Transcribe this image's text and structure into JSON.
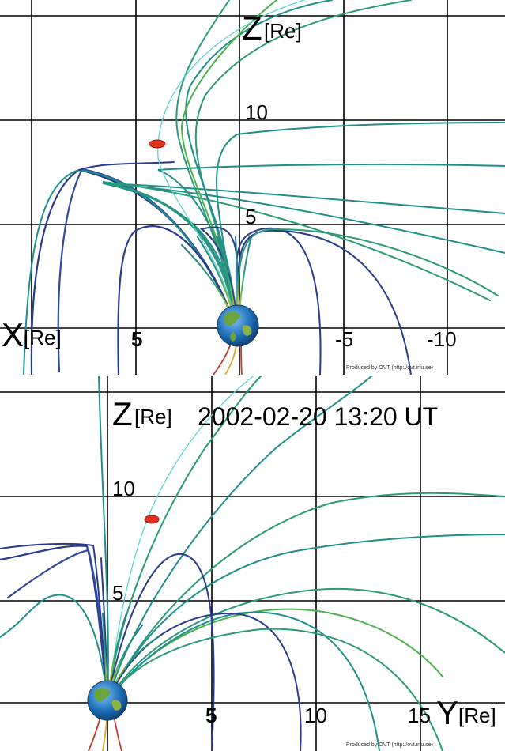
{
  "top_panel": {
    "vertical_axis": {
      "letter": "Z",
      "unit": "[Re]",
      "ticks": [
        "10",
        "5"
      ]
    },
    "horizontal_axis": {
      "letter": "X",
      "unit": "[Re]",
      "ticks": [
        "5",
        "-5",
        "-10"
      ]
    },
    "credit": "Produced by OVT (http://ovt.irfu.se)"
  },
  "bottom_panel": {
    "vertical_axis": {
      "letter": "Z",
      "unit": "[Re]",
      "ticks": [
        "10",
        "5"
      ]
    },
    "horizontal_axis": {
      "letter": "Y",
      "unit": "[Re]",
      "ticks": [
        "5",
        "10",
        "15"
      ]
    },
    "timestamp": "2002-02-20 13:20 UT",
    "credit": "Produced by OVT (http://ovt.irfu.se)"
  },
  "colors": {
    "field_line_teal": "#1f8f8a",
    "field_line_navy": "#2a3a8c",
    "field_line_green": "#4bb04b",
    "field_line_cyan": "#5fd3d0",
    "spacecraft_red": "#e0311e",
    "earth_blue": "#1e6fb8",
    "earth_green": "#6aa43a"
  },
  "icons": {
    "earth": "earth-globe-icon",
    "spacecraft": "spacecraft-marker-icon"
  }
}
